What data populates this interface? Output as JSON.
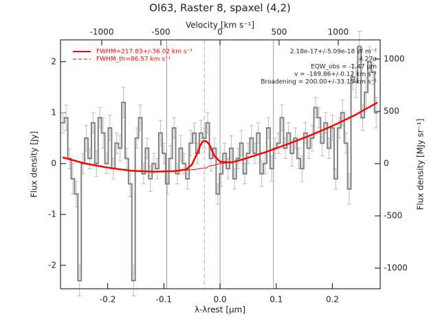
{
  "chart_data": {
    "type": "step",
    "title": "OI63, Raster 8, spaxel (4,2)",
    "xlabel": "λ-λrest [μm]",
    "x2label": "Velocity [km s⁻¹]",
    "ylabel": "Flux density [Jy]",
    "y2label": "Flux density [MJy sr⁻¹]",
    "xlim": [
      -0.284,
      0.285
    ],
    "xticks": [
      -0.2,
      -0.1,
      {
        "value": 0,
        "label": "0.0"
      },
      0.1,
      0.2
    ],
    "x2lim": [
      -1349,
      1355
    ],
    "x2ticks": [
      -1000,
      -500,
      0,
      500,
      1000
    ],
    "ylim": [
      -2.46,
      2.43
    ],
    "yticks": [
      -2,
      -1,
      0,
      1,
      2
    ],
    "y2lim": [
      -1197,
      1184
    ],
    "y2ticks": [
      -1000,
      -500,
      0,
      500,
      1000
    ],
    "spectrum": {
      "color": "#808080",
      "errcolor": "#bbbbbb",
      "x": [
        -0.28,
        -0.274,
        -0.268,
        -0.262,
        -0.256,
        -0.25,
        -0.244,
        -0.238,
        -0.232,
        -0.226,
        -0.22,
        -0.214,
        -0.208,
        -0.202,
        -0.196,
        -0.19,
        -0.184,
        -0.178,
        -0.172,
        -0.166,
        -0.16,
        -0.154,
        -0.148,
        -0.142,
        -0.136,
        -0.13,
        -0.124,
        -0.118,
        -0.112,
        -0.106,
        -0.1,
        -0.094,
        -0.088,
        -0.082,
        -0.076,
        -0.07,
        -0.064,
        -0.058,
        -0.052,
        -0.046,
        -0.04,
        -0.034,
        -0.028,
        -0.022,
        -0.016,
        -0.01,
        -0.004,
        0.002,
        0.008,
        0.014,
        0.02,
        0.026,
        0.032,
        0.038,
        0.044,
        0.05,
        0.056,
        0.062,
        0.068,
        0.074,
        0.08,
        0.086,
        0.092,
        0.098,
        0.104,
        0.11,
        0.116,
        0.122,
        0.128,
        0.134,
        0.14,
        0.146,
        0.152,
        0.158,
        0.164,
        0.17,
        0.176,
        0.182,
        0.188,
        0.194,
        0.2,
        0.206,
        0.212,
        0.218,
        0.224,
        0.23,
        0.236,
        0.242,
        0.248,
        0.254,
        0.26,
        0.266,
        0.272,
        0.278
      ],
      "values": [
        0.8,
        0.9,
        0.1,
        -0.3,
        -0.6,
        -2.3,
        0.0,
        0.5,
        0.1,
        0.8,
        0.0,
        0.9,
        0.6,
        0.0,
        0.7,
        -0.1,
        0.4,
        0.3,
        1.2,
        0.1,
        -0.4,
        -2.3,
        0.5,
        0.9,
        -0.2,
        0.3,
        -0.3,
        0.0,
        -0.1,
        0.6,
        0.2,
        -0.4,
        0.1,
        0.7,
        -0.2,
        0.3,
        0.0,
        -0.3,
        0.4,
        0.6,
        0.2,
        0.6,
        0.5,
        0.8,
        0.1,
        0.3,
        -0.6,
        -0.2,
        0.2,
        -0.1,
        0.3,
        -0.3,
        0.1,
        0.4,
        -0.2,
        0.2,
        0.5,
        0.2,
        0.6,
        -0.2,
        0.0,
        0.7,
        -0.1,
        0.3,
        0.4,
        0.9,
        0.3,
        0.6,
        0.2,
        0.5,
        0.1,
        -0.1,
        0.6,
        0.3,
        0.5,
        1.1,
        0.9,
        0.4,
        0.8,
        0.3,
        0.7,
        -0.3,
        0.7,
        1.0,
        0.4,
        -0.5,
        1.7,
        1.6,
        2.3,
        0.9,
        1.4,
        2.0,
        1.8,
        1.0
      ],
      "errors": [
        0.2,
        0.25,
        0.2,
        0.3,
        0.25,
        0.3,
        0.2,
        0.25,
        0.2,
        0.2,
        0.25,
        0.2,
        0.3,
        0.2,
        0.25,
        0.2,
        0.2,
        0.25,
        0.3,
        0.2,
        0.25,
        0.3,
        0.2,
        0.25,
        0.2,
        0.2,
        0.25,
        0.2,
        0.2,
        0.25,
        0.2,
        0.2,
        0.25,
        0.2,
        0.2,
        0.25,
        0.2,
        0.2,
        0.25,
        0.2,
        0.2,
        0.25,
        0.2,
        0.2,
        0.25,
        0.2,
        0.2,
        0.25,
        0.2,
        0.2,
        0.25,
        0.2,
        0.2,
        0.25,
        0.2,
        0.2,
        0.25,
        0.2,
        0.2,
        0.25,
        0.2,
        0.2,
        0.25,
        0.2,
        0.2,
        0.25,
        0.2,
        0.2,
        0.25,
        0.2,
        0.2,
        0.25,
        0.2,
        0.2,
        0.25,
        0.2,
        0.2,
        0.25,
        0.2,
        0.2,
        0.25,
        0.2,
        0.2,
        0.25,
        0.2,
        0.3,
        0.25,
        0.3,
        0.3,
        0.25,
        0.3,
        0.3,
        0.25,
        0.3
      ]
    },
    "fit": {
      "color": "#ff0000",
      "component_color": "#ff8c00",
      "x": [
        -0.28,
        -0.24,
        -0.2,
        -0.16,
        -0.12,
        -0.08,
        -0.06,
        -0.05,
        -0.04,
        -0.035,
        -0.03,
        -0.025,
        -0.02,
        -0.01,
        0,
        0.02,
        0.04,
        0.08,
        0.12,
        0.16,
        0.2,
        0.24,
        0.28
      ],
      "total": [
        0.12,
        0.0,
        -0.08,
        -0.14,
        -0.16,
        -0.15,
        -0.114,
        -0.02,
        0.22,
        0.36,
        0.445,
        0.44,
        0.39,
        0.15,
        0.036,
        0.02,
        0.08,
        0.22,
        0.38,
        0.55,
        0.74,
        0.95,
        1.2
      ],
      "baseline": [
        0.12,
        0.0,
        -0.08,
        -0.14,
        -0.16,
        -0.15,
        -0.13,
        -0.12,
        -0.11,
        -0.1,
        -0.095,
        -0.09,
        -0.05,
        -0.03,
        0.0,
        0.02,
        0.08,
        0.22,
        0.38,
        0.55,
        0.74,
        0.95,
        1.2
      ],
      "component": [
        null,
        null,
        null,
        null,
        null,
        -0.15,
        -0.114,
        -0.02,
        0.22,
        0.36,
        0.445,
        0.44,
        0.39,
        0.15,
        0.036,
        0.02,
        null,
        null,
        null,
        null,
        null,
        null,
        null
      ]
    },
    "vlines": [
      -0.095,
      0,
      0.095
    ],
    "line_center": -0.028,
    "legend": [
      {
        "label": "FWHM=217.83+/-36.02 km s⁻¹",
        "color": "#ff0000",
        "dash": false
      },
      {
        "label": "FWHM_th=86.57 km s⁻¹",
        "color": "#ff0000",
        "dash": true
      }
    ],
    "annotations": [
      "2.18e-17+/-5.09e-18 W m⁻²",
      "4.27σ",
      "EQW_obs = -1.47 μm",
      "v = -189.86+/-0.12 km s⁻¹",
      "Broadening = 200.00+/-33.15 km s⁻¹"
    ]
  }
}
